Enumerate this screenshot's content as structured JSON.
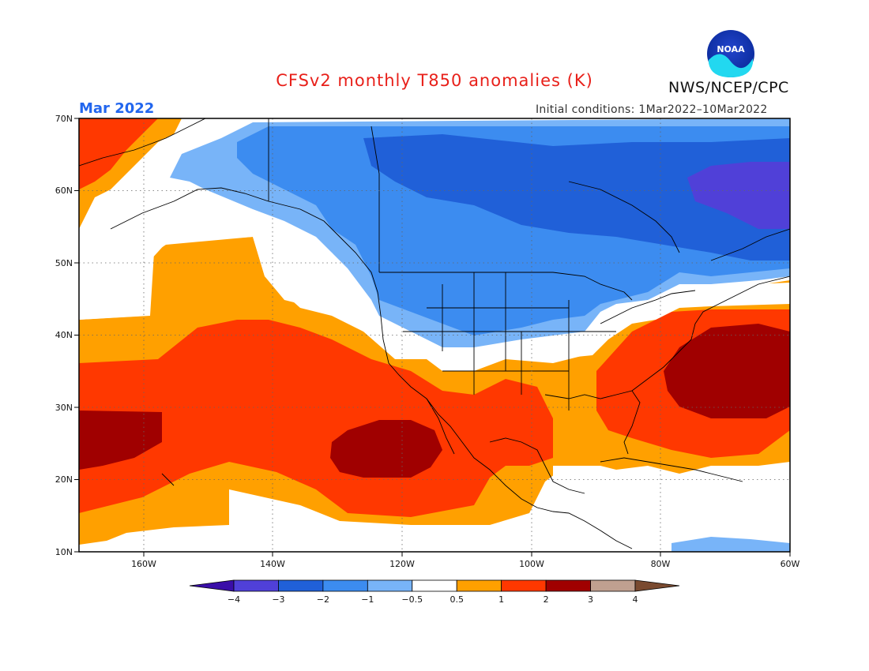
{
  "header": {
    "title": "CFSv2 monthly T850 anomalies (K)",
    "agency": "NWS/NCEP/CPC",
    "period": "Mar 2022",
    "initial_conditions": "Initial conditions: 1Mar2022–10Mar2022",
    "logo_text": "NOAA"
  },
  "map": {
    "lat_range": [
      10,
      70
    ],
    "lon_range": [
      -170,
      -60
    ],
    "lat_ticks": [
      "10N",
      "20N",
      "30N",
      "40N",
      "50N",
      "60N",
      "70N"
    ],
    "lon_ticks": [
      "160W",
      "140W",
      "120W",
      "100W",
      "80W",
      "60W"
    ]
  },
  "legend": {
    "labels": [
      "−4",
      "−3",
      "−2",
      "−1",
      "−0.5",
      "0.5",
      "1",
      "2",
      "3",
      "4"
    ],
    "colors": [
      "#3a0ea8",
      "#5040d8",
      "#2060d8",
      "#3c8cf0",
      "#78b4f8",
      "#ffffff",
      "#ffa000",
      "#ff3800",
      "#a00000",
      "#c0a090",
      "#7a4a30"
    ]
  }
}
